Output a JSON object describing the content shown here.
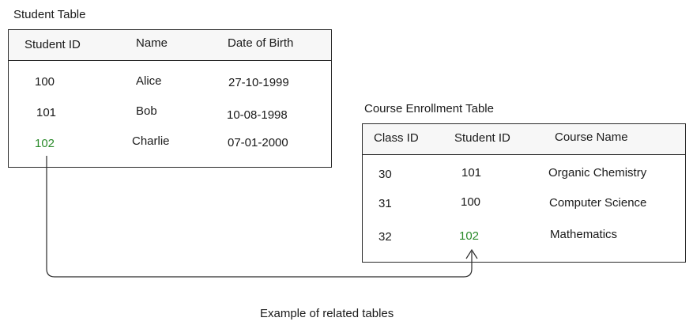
{
  "colors": {
    "border": "#2a2a2a",
    "text": "#1a1a1a",
    "highlight": "#2a8a2a",
    "header_bg": "#f7f7f7"
  },
  "student_table": {
    "title": "Student Table",
    "columns": [
      "Student ID",
      "Name",
      "Date of Birth"
    ],
    "rows": [
      [
        "100",
        "Alice",
        "27-10-1999"
      ],
      [
        "101",
        "Bob",
        "10-08-1998"
      ],
      [
        "102",
        "Charlie",
        "07-01-2000"
      ]
    ]
  },
  "course_table": {
    "title": "Course Enrollment Table",
    "columns": [
      "Class ID",
      "Student ID",
      "Course Name"
    ],
    "rows": [
      [
        "30",
        "101",
        "Organic Chemistry"
      ],
      [
        "31",
        "100",
        "Computer Science"
      ],
      [
        "32",
        "102",
        "Mathematics"
      ]
    ]
  },
  "caption": "Example of related tables"
}
